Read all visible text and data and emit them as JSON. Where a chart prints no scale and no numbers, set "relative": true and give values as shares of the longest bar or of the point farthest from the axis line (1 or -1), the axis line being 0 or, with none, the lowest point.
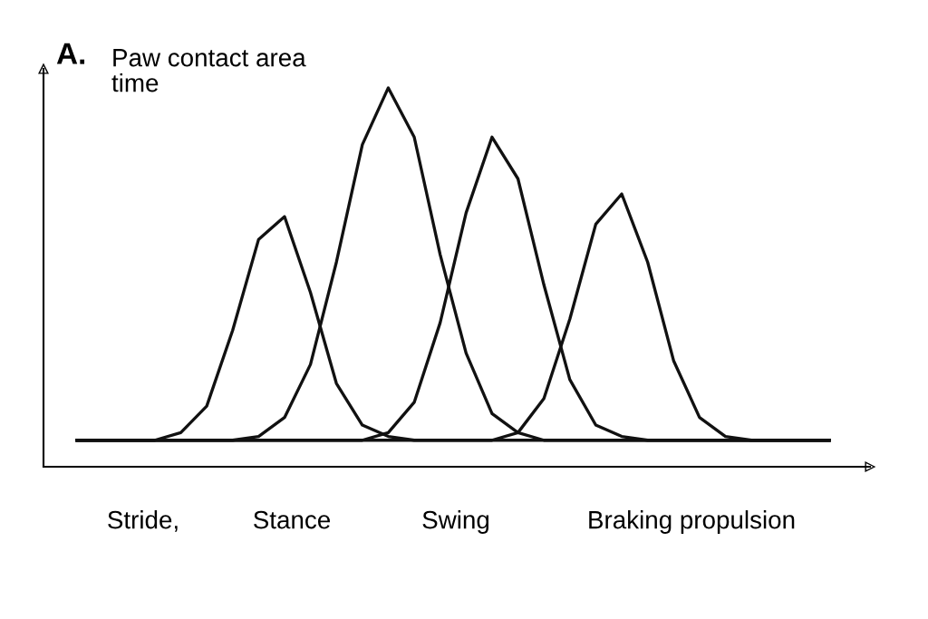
{
  "chart_data": {
    "type": "line",
    "relative": true,
    "title": "A.",
    "ylabel": "Paw contact area\ntime",
    "categories": [
      null,
      null,
      null,
      null,
      null,
      null,
      null,
      null,
      null,
      null,
      null,
      null,
      null,
      null,
      null,
      null,
      null,
      null,
      null,
      null,
      null,
      null,
      null,
      null,
      null,
      null,
      null,
      null,
      null,
      null
    ],
    "series": [
      {
        "color": "#111111",
        "values": [
          0.07,
          0.07,
          0.07,
          0.07,
          0.09,
          0.16,
          0.36,
          0.6,
          0.66,
          0.46,
          0.22,
          0.11,
          0.08,
          0.07,
          0.07,
          0.07,
          0.07,
          0.07,
          0.07,
          0.07,
          0.07,
          0.07,
          0.07,
          0.07,
          0.07,
          0.07,
          0.07,
          0.07,
          0.07,
          0.07
        ]
      },
      {
        "color": "#111111",
        "values": [
          0.07,
          0.07,
          0.07,
          0.07,
          0.07,
          0.07,
          0.07,
          0.08,
          0.13,
          0.27,
          0.54,
          0.85,
          1.0,
          0.87,
          0.56,
          0.3,
          0.14,
          0.09,
          0.07,
          0.07,
          0.07,
          0.07,
          0.07,
          0.07,
          0.07,
          0.07,
          0.07,
          0.07,
          0.07,
          0.07
        ]
      },
      {
        "color": "#111111",
        "values": [
          0.07,
          0.07,
          0.07,
          0.07,
          0.07,
          0.07,
          0.07,
          0.07,
          0.07,
          0.07,
          0.07,
          0.07,
          0.09,
          0.17,
          0.38,
          0.67,
          0.87,
          0.76,
          0.48,
          0.23,
          0.11,
          0.08,
          0.07,
          0.07,
          0.07,
          0.07,
          0.07,
          0.07,
          0.07,
          0.07
        ]
      },
      {
        "color": "#111111",
        "values": [
          0.07,
          0.07,
          0.07,
          0.07,
          0.07,
          0.07,
          0.07,
          0.07,
          0.07,
          0.07,
          0.07,
          0.07,
          0.07,
          0.07,
          0.07,
          0.07,
          0.07,
          0.09,
          0.18,
          0.39,
          0.64,
          0.72,
          0.54,
          0.28,
          0.13,
          0.08,
          0.07,
          0.07,
          0.07,
          0.07
        ]
      }
    ],
    "annotations": [
      "Stride,",
      "Stance",
      "Swing",
      "Braking propulsion"
    ],
    "legend": false
  }
}
